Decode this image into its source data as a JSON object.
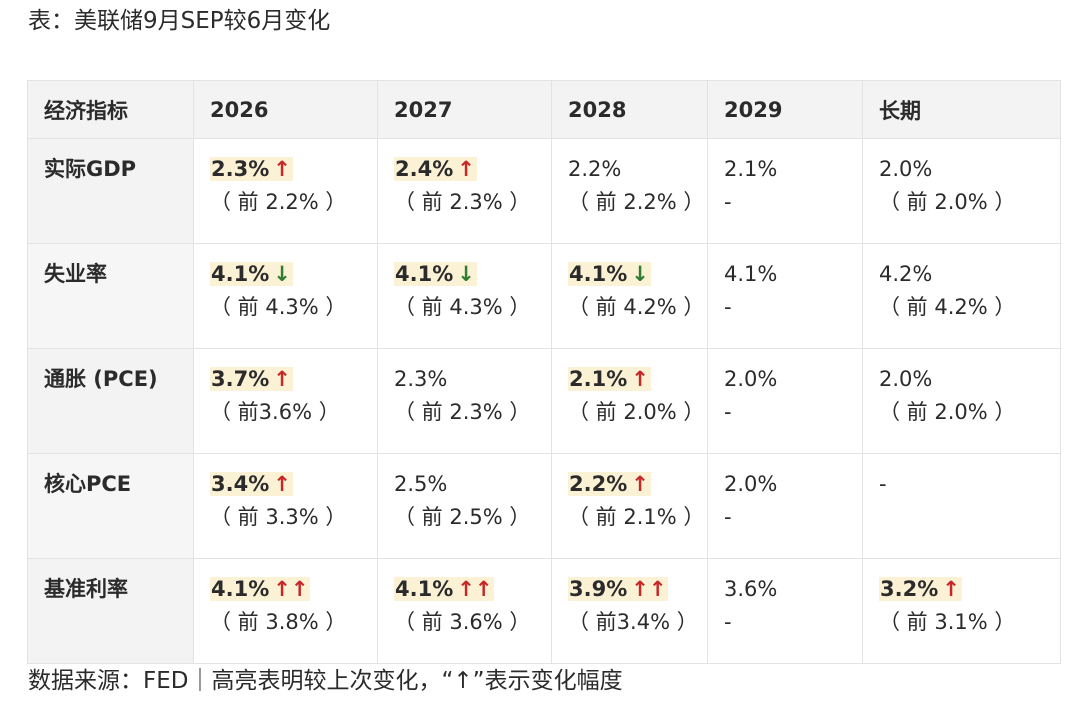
{
  "title": "表：美联储9月SEP较6月变化",
  "table": {
    "headers": [
      "经济指标",
      "2026",
      "2027",
      "2028",
      "2029",
      "长期"
    ],
    "rows": [
      {
        "label": "实际GDP",
        "cells": [
          {
            "value": "2.3%",
            "arrow": "↑",
            "prev": "（ 前 2.2% ）",
            "highlight": true,
            "direction": "up"
          },
          {
            "value": "2.4%",
            "arrow": "↑",
            "prev": "（ 前 2.3% ）",
            "highlight": true,
            "direction": "up"
          },
          {
            "value": "2.2%",
            "arrow": "",
            "prev": "（ 前 2.2% ）",
            "highlight": false,
            "direction": ""
          },
          {
            "value": "2.1%",
            "arrow": "",
            "prev": "-",
            "highlight": false,
            "direction": ""
          },
          {
            "value": "2.0%",
            "arrow": "",
            "prev": "（ 前 2.0% ）",
            "highlight": false,
            "direction": ""
          }
        ]
      },
      {
        "label": "失业率",
        "cells": [
          {
            "value": "4.1%",
            "arrow": "↓",
            "prev": "（ 前 4.3% ）",
            "highlight": true,
            "direction": "down"
          },
          {
            "value": "4.1%",
            "arrow": "↓",
            "prev": "（ 前 4.3% ）",
            "highlight": true,
            "direction": "down"
          },
          {
            "value": "4.1%",
            "arrow": "↓",
            "prev": "（ 前 4.2% ）",
            "highlight": true,
            "direction": "down"
          },
          {
            "value": "4.1%",
            "arrow": "",
            "prev": "-",
            "highlight": false,
            "direction": ""
          },
          {
            "value": "4.2%",
            "arrow": "",
            "prev": "（ 前 4.2% ）",
            "highlight": false,
            "direction": ""
          }
        ]
      },
      {
        "label": "通胀 (PCE)",
        "cells": [
          {
            "value": "3.7%",
            "arrow": "↑",
            "prev": "（ 前3.6% ）",
            "highlight": true,
            "direction": "up"
          },
          {
            "value": "2.3%",
            "arrow": "",
            "prev": "（ 前 2.3% ）",
            "highlight": false,
            "direction": ""
          },
          {
            "value": "2.1%",
            "arrow": "↑",
            "prev": "（ 前 2.0% ）",
            "highlight": true,
            "direction": "up"
          },
          {
            "value": "2.0%",
            "arrow": "",
            "prev": "-",
            "highlight": false,
            "direction": ""
          },
          {
            "value": "2.0%",
            "arrow": "",
            "prev": "（ 前 2.0% ）",
            "highlight": false,
            "direction": ""
          }
        ]
      },
      {
        "label": "核心PCE",
        "cells": [
          {
            "value": "3.4%",
            "arrow": "↑",
            "prev": "（ 前 3.3% ）",
            "highlight": true,
            "direction": "up"
          },
          {
            "value": "2.5%",
            "arrow": "",
            "prev": "（ 前 2.5% ）",
            "highlight": false,
            "direction": ""
          },
          {
            "value": "2.2%",
            "arrow": "↑",
            "prev": "（ 前 2.1% ）",
            "highlight": true,
            "direction": "up"
          },
          {
            "value": "2.0%",
            "arrow": "",
            "prev": "-",
            "highlight": false,
            "direction": ""
          },
          {
            "value": "-",
            "arrow": "",
            "prev": "",
            "highlight": false,
            "direction": ""
          }
        ]
      },
      {
        "label": "基准利率",
        "cells": [
          {
            "value": "4.1%",
            "arrow": "↑↑",
            "prev": "（ 前 3.8% ）",
            "highlight": true,
            "direction": "up"
          },
          {
            "value": "4.1%",
            "arrow": "↑↑",
            "prev": "（ 前 3.6% ）",
            "highlight": true,
            "direction": "up"
          },
          {
            "value": "3.9%",
            "arrow": "↑↑",
            "prev": "（ 前3.4% ）",
            "highlight": true,
            "direction": "up"
          },
          {
            "value": "3.6%",
            "arrow": "",
            "prev": "-",
            "highlight": false,
            "direction": ""
          },
          {
            "value": "3.2%",
            "arrow": "↑",
            "prev": "（ 前 3.1% ）",
            "highlight": true,
            "direction": "up"
          }
        ]
      }
    ]
  },
  "footer": "数据来源：FED｜高亮表明较上次变化，“↑”表示变化幅度",
  "colors": {
    "up_arrow": "#c62828",
    "down_arrow": "#2e7d32",
    "highlight": "#fbf1d4",
    "header_bg": "#f3f3f3"
  }
}
